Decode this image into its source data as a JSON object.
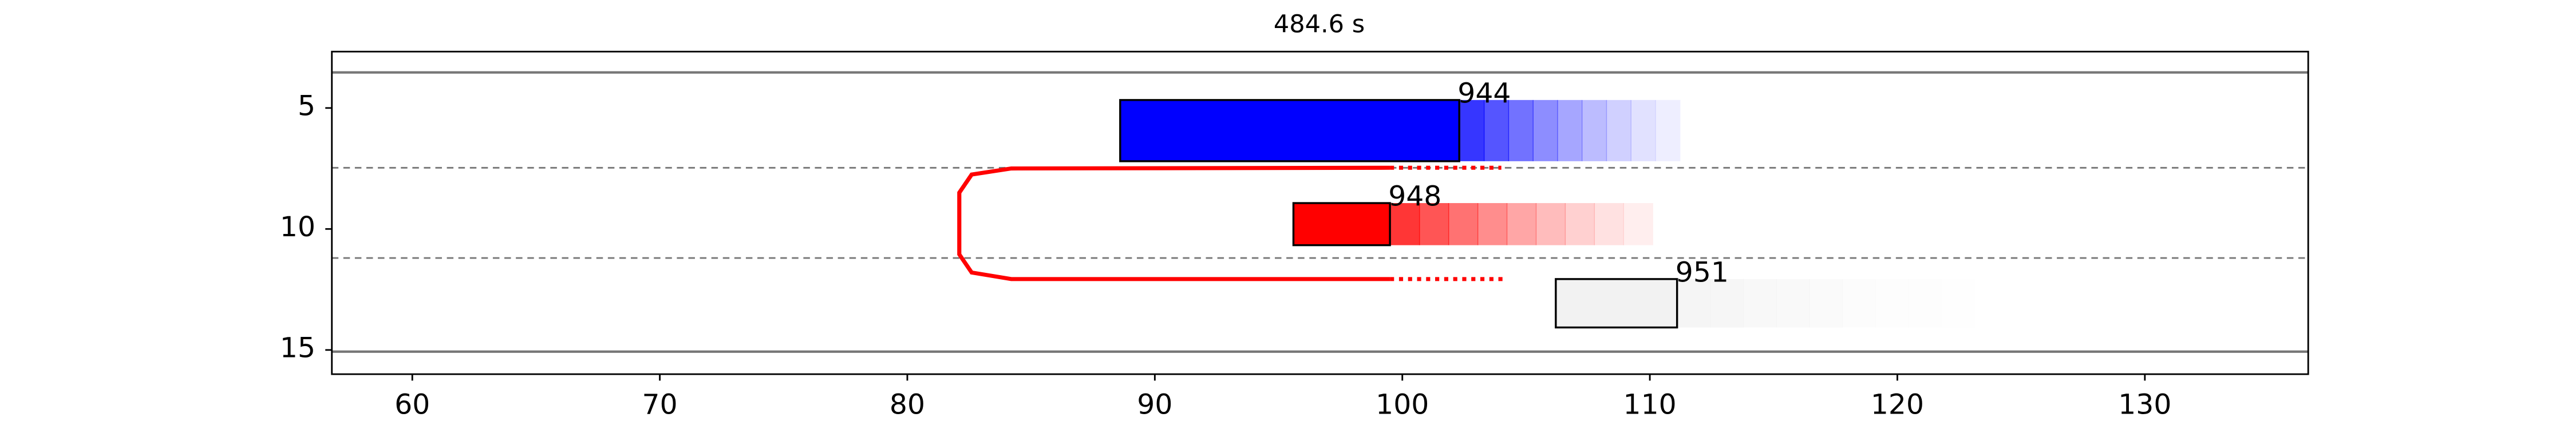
{
  "chart_data": {
    "type": "traffic",
    "title": "484.6 s",
    "xlim": [
      56.75,
      136.6
    ],
    "ylim": [
      16,
      2.67
    ],
    "xticks": [
      60,
      70,
      80,
      90,
      100,
      110,
      120,
      130
    ],
    "yticks": [
      5,
      10,
      15
    ],
    "lane_edges": [
      3.53,
      15.07
    ],
    "lane_dividers": [
      7.47,
      11.2
    ],
    "vehicles": [
      {
        "name": "944",
        "color": "#0000ff",
        "x": [
          88.6,
          102.3
        ],
        "y": [
          4.67,
          7.2
        ],
        "trail_end": 111.2
      },
      {
        "name": "948",
        "color": "#ff0000",
        "x": [
          95.6,
          99.5
        ],
        "y": [
          8.93,
          10.67
        ],
        "trail_end": 110.1
      },
      {
        "name": "951",
        "color": "#f2f2f2",
        "x": [
          106.2,
          111.1
        ],
        "y": [
          12.07,
          14.07
        ],
        "trail_end": 123.1
      }
    ],
    "trajectory": {
      "color": "#ff0000",
      "x": [
        99.5,
        84.2,
        82.6,
        82.1,
        82.1,
        82.6,
        84.2,
        99.5
      ],
      "y": [
        7.47,
        7.5,
        7.75,
        8.5,
        11.05,
        11.8,
        12.07,
        12.07
      ],
      "dotted": [
        {
          "x": [
            99.5,
            104.0
          ],
          "y": [
            7.47,
            7.47
          ]
        },
        {
          "x": [
            99.5,
            104.2
          ],
          "y": [
            12.07,
            12.07
          ]
        }
      ]
    }
  }
}
